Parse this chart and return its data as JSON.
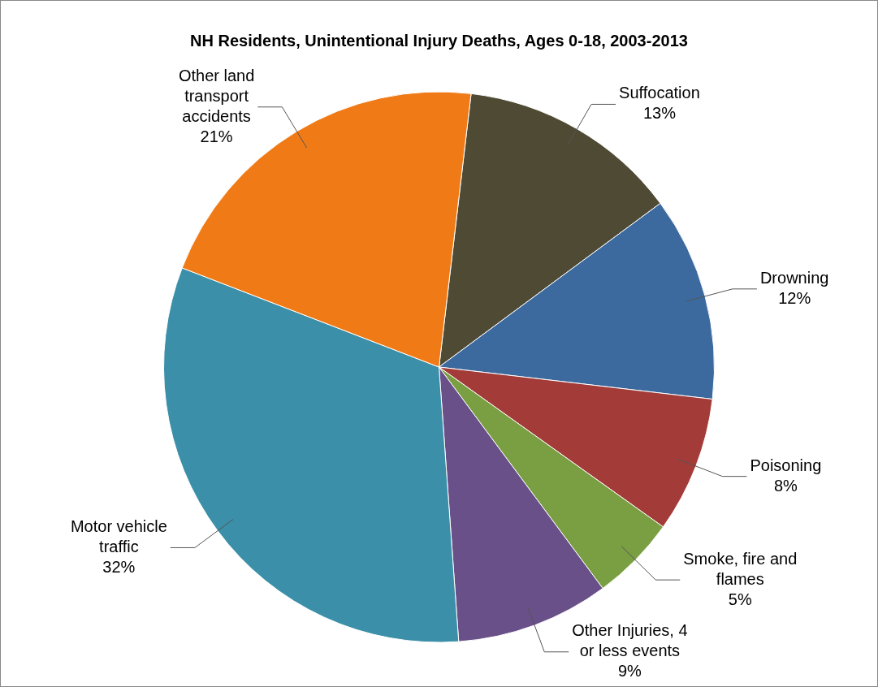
{
  "chart_data": {
    "type": "pie",
    "title": "NH Residents, Unintentional Injury Deaths, Ages 0-18, 2003-2013",
    "categories": [
      "Suffocation",
      "Drowning",
      "Poisoning",
      "Smoke, fire and flames",
      "Other Injuries, 4 or less events",
      "Motor vehicle traffic",
      "Other land transport accidents"
    ],
    "values": [
      13,
      12,
      8,
      5,
      9,
      32,
      21
    ],
    "value_labels": [
      "13%",
      "12%",
      "8%",
      "5%",
      "9%",
      "32%",
      "21%"
    ],
    "colors": [
      "#4f4a33",
      "#3d6a9e",
      "#a33b38",
      "#7a9e42",
      "#6a5088",
      "#3b8fa8",
      "#f07a16"
    ],
    "legend": false
  }
}
